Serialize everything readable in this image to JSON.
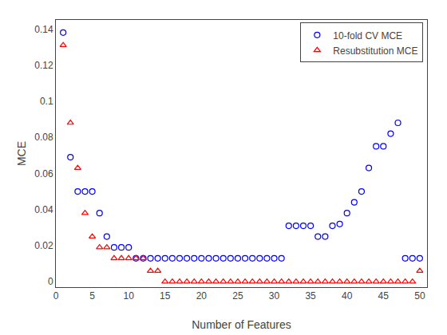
{
  "chart_data": {
    "type": "scatter",
    "xlabel": "Number of Features",
    "ylabel": "MCE",
    "x": [
      1,
      2,
      3,
      4,
      5,
      6,
      7,
      8,
      9,
      10,
      11,
      12,
      13,
      14,
      15,
      16,
      17,
      18,
      19,
      20,
      21,
      22,
      23,
      24,
      25,
      26,
      27,
      28,
      29,
      30,
      31,
      32,
      33,
      34,
      35,
      36,
      37,
      38,
      39,
      40,
      41,
      42,
      43,
      44,
      45,
      46,
      47,
      48,
      49,
      50
    ],
    "series": [
      {
        "name": "10-fold CV MCE",
        "color": "#0000ff",
        "marker": "circle",
        "values": [
          0.138,
          0.069,
          0.05,
          0.05,
          0.05,
          0.038,
          0.025,
          0.019,
          0.019,
          0.019,
          0.013,
          0.013,
          0.013,
          0.013,
          0.013,
          0.013,
          0.013,
          0.013,
          0.013,
          0.013,
          0.013,
          0.013,
          0.013,
          0.013,
          0.013,
          0.013,
          0.013,
          0.013,
          0.013,
          0.013,
          0.013,
          0.031,
          0.031,
          0.031,
          0.031,
          0.025,
          0.025,
          0.031,
          0.032,
          0.038,
          0.044,
          0.05,
          0.063,
          0.075,
          0.075,
          0.082,
          0.088,
          0.013,
          0.013,
          0.013
        ]
      },
      {
        "name": "Resubstitution MCE",
        "color": "#ff0000",
        "marker": "triangle-up",
        "values": [
          0.131,
          0.088,
          0.063,
          0.038,
          0.025,
          0.019,
          0.019,
          0.013,
          0.013,
          0.013,
          0.013,
          0.013,
          0.006,
          0.006,
          0.0,
          0.0,
          0.0,
          0.0,
          0.0,
          0.0,
          0.0,
          0.0,
          0.0,
          0.0,
          0.0,
          0.0,
          0.0,
          0.0,
          0.0,
          0.0,
          0.0,
          0.0,
          0.0,
          0.0,
          0.0,
          0.0,
          0.0,
          0.0,
          0.0,
          0.0,
          0.0,
          0.0,
          0.0,
          0.0,
          0.0,
          0.0,
          0.0,
          0.0,
          0.0,
          0.006
        ]
      }
    ],
    "xlim": [
      0,
      51
    ],
    "xticks": [
      0,
      5,
      10,
      15,
      20,
      25,
      30,
      35,
      40,
      45,
      50
    ],
    "ylim": [
      -0.003,
      0.145
    ],
    "yticks": [
      0,
      0.02,
      0.04,
      0.06,
      0.08,
      0.1,
      0.12,
      0.14
    ],
    "grid": false,
    "legend": "upper right"
  }
}
